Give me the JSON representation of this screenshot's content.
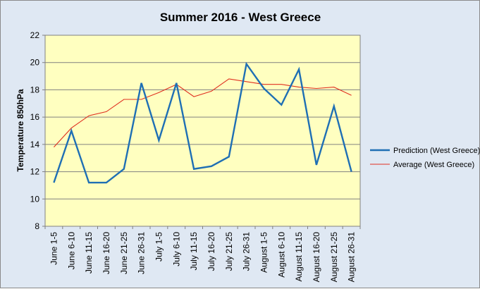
{
  "chart_data": {
    "type": "line",
    "title": "Summer 2016 - West Greece",
    "ylabel": "Temperature 850hPa",
    "xlabel": "",
    "ylim": [
      8,
      22
    ],
    "yticks": [
      8,
      10,
      12,
      14,
      16,
      18,
      20,
      22
    ],
    "grid": true,
    "legend_position": "right",
    "categories": [
      "June 1-5",
      "June 6-10",
      "June 11-15",
      "June 16-20",
      "June 21-25",
      "June 26-31",
      "July 1-5",
      "July 6-10",
      "July 11-15",
      "July 16-20",
      "July 21-25",
      "July 26-31",
      "August 1-5",
      "August 6-10",
      "August 11-15",
      "August 16-20",
      "August 21-25",
      "August 26-31"
    ],
    "series": [
      {
        "name": "Prediction (West Greece)",
        "color": "#1f6fb4",
        "values": [
          11.2,
          15.0,
          11.2,
          11.2,
          12.2,
          18.5,
          14.3,
          18.5,
          12.2,
          12.4,
          13.1,
          19.9,
          18.1,
          16.9,
          19.5,
          12.5,
          16.8,
          12.0
        ]
      },
      {
        "name": "Average (West Greece)",
        "color": "#e03020",
        "values": [
          13.8,
          15.2,
          16.1,
          16.4,
          17.3,
          17.3,
          17.8,
          18.4,
          17.5,
          17.9,
          18.8,
          18.6,
          18.4,
          18.4,
          18.2,
          18.1,
          18.2,
          17.6
        ]
      }
    ]
  },
  "colors": {
    "plot_background": "#ffffc0",
    "chart_background": "#dfe8f3",
    "gridline": "#808080"
  }
}
